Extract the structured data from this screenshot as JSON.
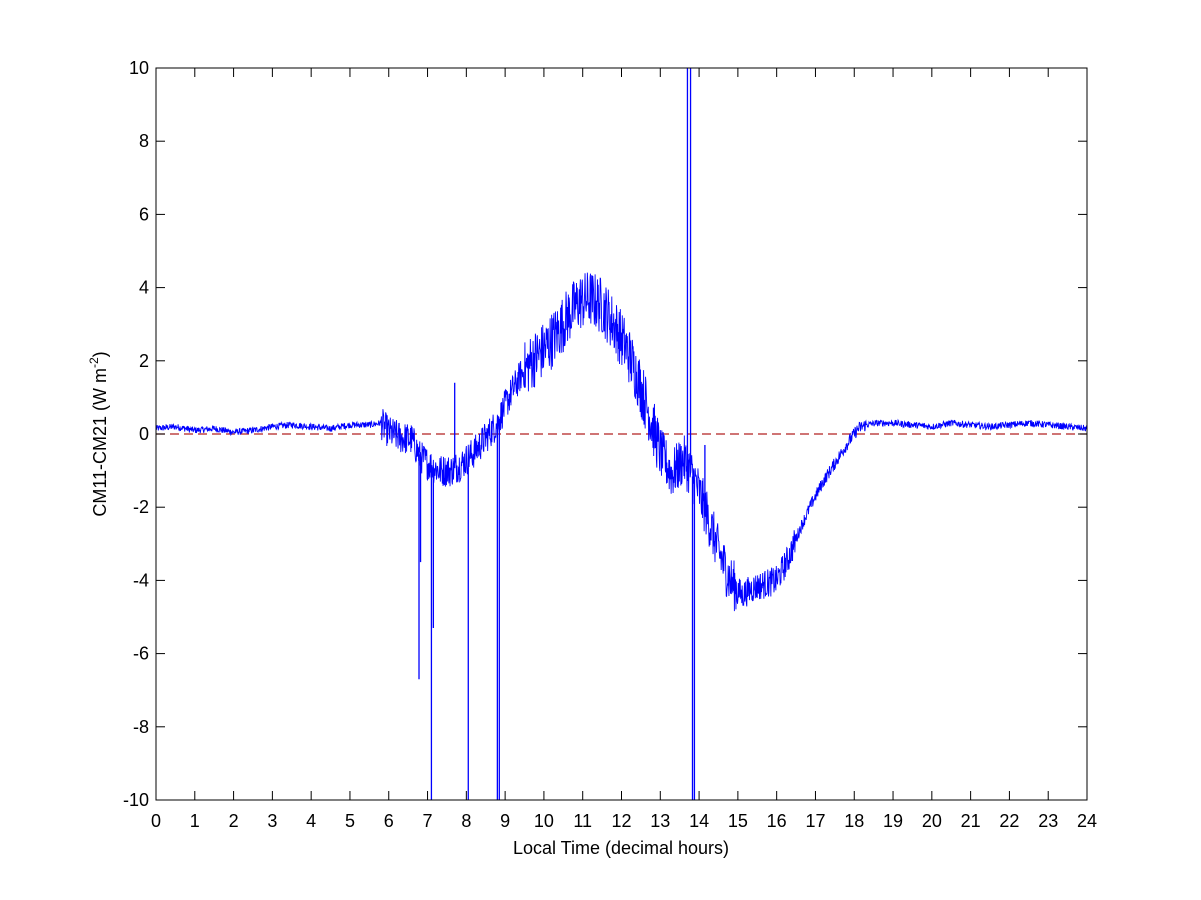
{
  "chart_data": {
    "type": "line",
    "xlabel": "Local Time (decimal hours)",
    "ylabel_main": "CM11-CM21 (W m",
    "ylabel_sup": "-2",
    "ylabel_tail": ")",
    "xlim": [
      0,
      24
    ],
    "ylim": [
      -10,
      10
    ],
    "grid": false,
    "x_ticks": [
      "0",
      "1",
      "2",
      "3",
      "4",
      "5",
      "6",
      "7",
      "8",
      "9",
      "10",
      "11",
      "12",
      "13",
      "14",
      "15",
      "16",
      "17",
      "18",
      "19",
      "20",
      "21",
      "22",
      "23",
      "24"
    ],
    "y_ticks": [
      "-10",
      "-8",
      "-6",
      "-4",
      "-2",
      "0",
      "2",
      "4",
      "6",
      "8",
      "10"
    ],
    "colors": {
      "series": "#0000ff",
      "reference": "#b22222"
    },
    "reference_line": {
      "y": 0,
      "style": "dashed"
    },
    "series": [
      {
        "x": [
          0,
          0.5,
          1,
          1.5,
          2,
          2.5,
          3,
          3.5,
          4,
          4.5,
          5,
          5.5,
          5.8,
          6.0,
          6.3,
          6.6,
          6.8,
          7.0,
          7.3,
          7.6,
          7.9,
          8.2,
          8.5,
          8.8,
          9.1,
          9.4,
          9.7,
          10.0,
          10.3,
          10.6,
          10.9,
          11.2,
          11.5,
          11.8,
          12.1,
          12.4,
          12.7,
          13.0,
          13.3,
          13.6,
          13.9,
          14.2,
          14.5,
          14.8,
          15.1,
          15.4,
          15.7,
          16.0,
          16.3,
          16.6,
          16.9,
          17.2,
          17.5,
          17.8,
          18.1,
          18.3,
          18.6,
          19,
          19.5,
          20,
          20.5,
          21,
          21.5,
          22,
          22.5,
          23,
          23.5,
          24
        ],
        "y": [
          0.15,
          0.2,
          0.1,
          0.15,
          0.05,
          0.1,
          0.2,
          0.25,
          0.2,
          0.15,
          0.25,
          0.25,
          0.3,
          0.05,
          -0.1,
          -0.15,
          -0.6,
          -0.8,
          -1.0,
          -1.0,
          -0.8,
          -0.5,
          -0.1,
          0.3,
          1.0,
          1.6,
          2.0,
          2.3,
          2.7,
          3.2,
          3.6,
          3.7,
          3.5,
          3.0,
          2.4,
          1.6,
          0.6,
          -0.5,
          -1.1,
          -0.7,
          -1.3,
          -2.2,
          -3.2,
          -4.0,
          -4.4,
          -4.2,
          -4.1,
          -4.0,
          -3.4,
          -2.6,
          -1.9,
          -1.3,
          -0.8,
          -0.3,
          0.15,
          0.25,
          0.3,
          0.3,
          0.25,
          0.2,
          0.3,
          0.25,
          0.2,
          0.25,
          0.3,
          0.25,
          0.2,
          0.15
        ]
      }
    ],
    "spikes": [
      {
        "x": 6.78,
        "y_min": -6.7
      },
      {
        "x": 6.82,
        "y_min": -3.5
      },
      {
        "x": 7.1,
        "y_min": -10
      },
      {
        "x": 7.15,
        "y_min": -5.3
      },
      {
        "x": 7.7,
        "y_max": 1.4
      },
      {
        "x": 8.05,
        "y_min": -10
      },
      {
        "x": 8.8,
        "y_min": -10
      },
      {
        "x": 8.85,
        "y_min": -10
      },
      {
        "x": 13.7,
        "y_max": 10
      },
      {
        "x": 13.78,
        "y_max": 10
      },
      {
        "x": 13.83,
        "y_min": -10
      },
      {
        "x": 13.88,
        "y_min": -10
      },
      {
        "x": 14.15,
        "y_max": -0.3
      }
    ]
  }
}
